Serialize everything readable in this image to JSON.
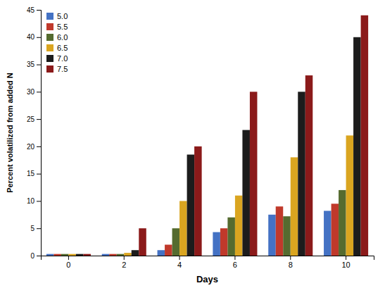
{
  "chart_data": {
    "type": "bar",
    "xlabel": "Days",
    "ylabel": "Percent volatilized from added N",
    "categories": [
      "0",
      "2",
      "4",
      "6",
      "8",
      "10"
    ],
    "series": [
      {
        "name": "5.0",
        "color": "#4472C4",
        "values": [
          0.3,
          0.3,
          1.0,
          4.3,
          7.5,
          8.2
        ]
      },
      {
        "name": "5.5",
        "color": "#C0392B",
        "values": [
          0.3,
          0.3,
          2.0,
          5.0,
          9.0,
          9.5
        ]
      },
      {
        "name": "6.0",
        "color": "#556B2F",
        "values": [
          0.3,
          0.3,
          5.0,
          7.0,
          7.2,
          12.0
        ]
      },
      {
        "name": "6.5",
        "color": "#DAA520",
        "values": [
          0.3,
          0.5,
          10.0,
          11.0,
          18.0,
          22.0
        ]
      },
      {
        "name": "7.0",
        "color": "#1C1C1C",
        "values": [
          0.3,
          1.0,
          18.5,
          23.0,
          30.0,
          40.0
        ]
      },
      {
        "name": "7.5",
        "color": "#8B1A1A",
        "values": [
          0.3,
          5.0,
          20.0,
          30.0,
          33.0,
          44.0
        ]
      }
    ],
    "ylim": [
      0,
      45
    ],
    "yticks": [
      0,
      5,
      10,
      15,
      20,
      25,
      30,
      35,
      40,
      45
    ],
    "grid": false,
    "legend": "upper left"
  }
}
